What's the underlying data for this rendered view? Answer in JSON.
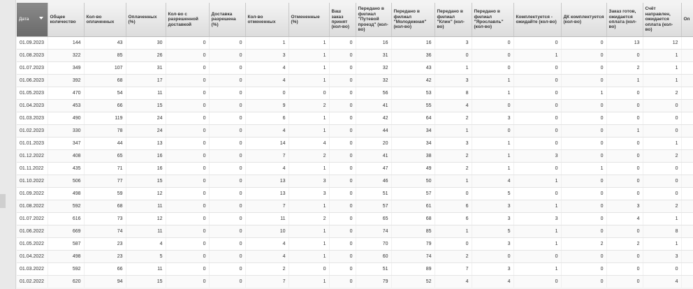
{
  "header": {
    "columns": [
      "Дата",
      "Общее количество",
      "Кол-во оплаченных",
      "Оплаченных (%)",
      "Кол-во с разрешенной доставкой",
      "Доставка разрешена (%)",
      "Кол-во отмененных",
      "Отмененные (%)",
      "Ваш заказ принят (кол-во)",
      "Передано в филиал \"Путевой проезд\" (кол-во)",
      "Передано в филиал \"Молодежная\" (кол-во)",
      "Передано в филиал \"Клин\" (кол-во)",
      "Передано в филиал \"Ярославль\" (кол-во)",
      "Комплектуется - ожидайте (кол-во)",
      "ДК комплектуется (кол-во)",
      "Заказ готов, ожидается оплата (кол-во)",
      "Счёт направлен, ожидается оплата (кол-во)",
      "Оп"
    ]
  },
  "table": {
    "rows": [
      [
        "01.09.2023",
        144,
        43,
        30,
        0,
        0,
        1,
        1,
        0,
        16,
        16,
        3,
        0,
        0,
        0,
        13,
        12
      ],
      [
        "01.08.2023",
        322,
        85,
        26,
        0,
        0,
        3,
        1,
        0,
        31,
        36,
        0,
        0,
        1,
        0,
        0,
        1
      ],
      [
        "01.07.2023",
        349,
        107,
        31,
        0,
        0,
        4,
        1,
        0,
        32,
        43,
        1,
        0,
        0,
        0,
        2,
        1
      ],
      [
        "01.06.2023",
        392,
        68,
        17,
        0,
        0,
        4,
        1,
        0,
        32,
        42,
        3,
        1,
        0,
        0,
        1,
        1
      ],
      [
        "01.05.2023",
        470,
        54,
        11,
        0,
        0,
        0,
        0,
        0,
        56,
        53,
        8,
        1,
        0,
        1,
        0,
        2
      ],
      [
        "01.04.2023",
        453,
        66,
        15,
        0,
        0,
        9,
        2,
        0,
        41,
        55,
        4,
        0,
        0,
        0,
        0,
        0
      ],
      [
        "01.03.2023",
        490,
        119,
        24,
        0,
        0,
        6,
        1,
        0,
        42,
        64,
        2,
        3,
        0,
        0,
        0,
        0
      ],
      [
        "01.02.2023",
        330,
        78,
        24,
        0,
        0,
        4,
        1,
        0,
        44,
        34,
        1,
        0,
        0,
        0,
        1,
        0
      ],
      [
        "01.01.2023",
        347,
        44,
        13,
        0,
        0,
        14,
        4,
        0,
        20,
        34,
        3,
        1,
        0,
        0,
        0,
        1
      ],
      [
        "01.12.2022",
        408,
        65,
        16,
        0,
        0,
        7,
        2,
        0,
        41,
        38,
        2,
        1,
        3,
        0,
        0,
        2
      ],
      [
        "01.11.2022",
        435,
        71,
        16,
        0,
        0,
        4,
        1,
        0,
        47,
        49,
        2,
        1,
        0,
        1,
        0,
        0
      ],
      [
        "01.10.2022",
        506,
        77,
        15,
        0,
        0,
        13,
        3,
        0,
        46,
        50,
        1,
        4,
        1,
        0,
        0,
        0
      ],
      [
        "01.09.2022",
        498,
        59,
        12,
        0,
        0,
        13,
        3,
        0,
        51,
        57,
        0,
        5,
        0,
        0,
        0,
        0
      ],
      [
        "01.08.2022",
        592,
        68,
        11,
        0,
        0,
        7,
        1,
        0,
        57,
        61,
        6,
        3,
        1,
        0,
        3,
        2
      ],
      [
        "01.07.2022",
        616,
        73,
        12,
        0,
        0,
        11,
        2,
        0,
        65,
        68,
        6,
        3,
        3,
        0,
        4,
        1
      ],
      [
        "01.06.2022",
        669,
        74,
        11,
        0,
        0,
        10,
        1,
        0,
        74,
        85,
        1,
        5,
        1,
        0,
        0,
        8
      ],
      [
        "01.05.2022",
        587,
        23,
        4,
        0,
        0,
        4,
        1,
        0,
        70,
        79,
        0,
        3,
        1,
        2,
        2,
        1
      ],
      [
        "01.04.2022",
        498,
        23,
        5,
        0,
        0,
        4,
        1,
        0,
        60,
        74,
        2,
        0,
        0,
        0,
        0,
        3
      ],
      [
        "01.03.2022",
        592,
        66,
        11,
        0,
        0,
        2,
        0,
        0,
        51,
        89,
        7,
        3,
        1,
        0,
        0,
        0
      ],
      [
        "01.02.2022",
        620,
        94,
        15,
        0,
        0,
        7,
        1,
        0,
        79,
        52,
        4,
        4,
        0,
        0,
        0,
        4
      ]
    ]
  }
}
